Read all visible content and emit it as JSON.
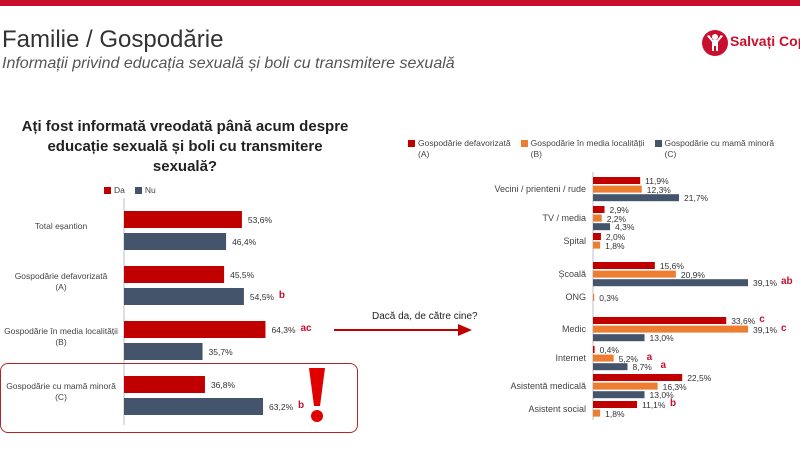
{
  "header": {
    "title": "Familie / Gospodărie",
    "subtitle": "Informații privind educația sexuală și boli cu transmitere sexuală",
    "logo_text": "Salvați Copiii",
    "logo_icon": "child-arms-up-icon",
    "accent_color": "#c8102e"
  },
  "left_question": "Ați fost informată vreodată până acum despre educație sexuală și boli cu transmitere sexuală?",
  "followup_text": "Dacă da, de către cine?",
  "chart_data": [
    {
      "type": "bar",
      "orientation": "horizontal",
      "title": "Ați fost informată vreodată până acum despre educație sexuală și boli cu transmitere sexuală?",
      "legend_position": "top-left",
      "grid": false,
      "xlim": [
        0,
        100
      ],
      "categories": [
        {
          "label": "Total eșantion"
        },
        {
          "label": "Gospodărie defavorizată",
          "sub": "(A)"
        },
        {
          "label": "Gospodărie în media localității",
          "sub": "(B)"
        },
        {
          "label": "Gospodărie cu mamă minoră",
          "sub": "(C)"
        }
      ],
      "series": [
        {
          "name": "Da",
          "color": "#c00000",
          "values": [
            53.6,
            45.5,
            64.3,
            36.8
          ],
          "labels": [
            "53,6%",
            "45,5%",
            "64,3%",
            "36,8%"
          ],
          "sig": [
            "",
            "",
            "ac",
            ""
          ]
        },
        {
          "name": "Nu",
          "color": "#44546a",
          "values": [
            46.4,
            54.5,
            35.7,
            63.2
          ],
          "labels": [
            "46,4%",
            "54,5%",
            "35,7%",
            "63,2%"
          ],
          "sig": [
            "",
            "b",
            "",
            "b"
          ]
        }
      ]
    },
    {
      "type": "bar",
      "orientation": "horizontal",
      "title": "Dacă da, de către cine?",
      "legend_position": "top",
      "grid": false,
      "xlim": [
        0,
        45
      ],
      "categories": [
        "Vecini / prienteni / rude",
        "TV / media",
        "Spital",
        "Școală",
        "ONG",
        "Medic",
        "Internet",
        "Asistentă medicală",
        "Asistent social"
      ],
      "series": [
        {
          "name": "Gospodărie defavorizată",
          "tag": "(A)",
          "color": "#c00000",
          "values": [
            11.9,
            2.9,
            2.0,
            15.6,
            null,
            33.6,
            0.4,
            22.5,
            11.1
          ],
          "labels": [
            "11,9%",
            "2,9%",
            "2,0%",
            "15,6%",
            "",
            "33,6%",
            "0,4%",
            "22,5%",
            "11,1%"
          ],
          "sig": [
            "",
            "",
            "",
            "",
            "",
            "c",
            "",
            "",
            "b"
          ]
        },
        {
          "name": "Gospodărie în media localității",
          "tag": "(B)",
          "color": "#ed7d31",
          "values": [
            12.3,
            2.2,
            1.8,
            20.9,
            0.3,
            39.1,
            5.2,
            16.3,
            1.8
          ],
          "labels": [
            "12,3%",
            "2,2%",
            "1,8%",
            "20,9%",
            "0,3%",
            "39,1%",
            "5,2%",
            "16,3%",
            "1,8%"
          ],
          "sig": [
            "",
            "",
            "",
            "",
            "",
            "c",
            "a",
            "",
            ""
          ]
        },
        {
          "name": "Gospodărie cu mamă minoră",
          "tag": "(C)",
          "color": "#44546a",
          "values": [
            21.7,
            4.3,
            null,
            39.1,
            null,
            13.0,
            8.7,
            13.0,
            null
          ],
          "labels": [
            "21,7%",
            "4,3%",
            "",
            "39,1%",
            "",
            "13,0%",
            "8,7%",
            "13,0%",
            ""
          ],
          "sig": [
            "",
            "",
            "",
            "ab",
            "",
            "",
            "a",
            "",
            ""
          ]
        }
      ]
    }
  ]
}
